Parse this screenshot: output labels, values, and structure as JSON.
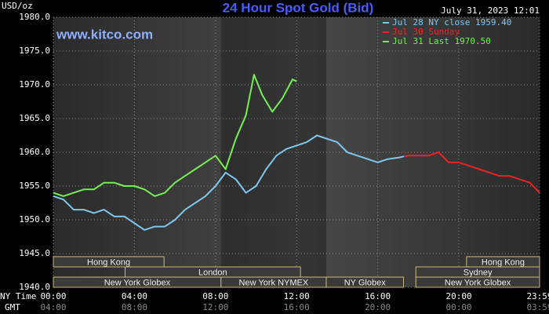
{
  "chart_data": {
    "type": "line",
    "title": "24 Hour Spot Gold (Bid)",
    "subtitle": "www.kitco.com",
    "timestamp": "July 31, 2023 12:01",
    "y_label": "USD/oz",
    "x_label": "NY Time",
    "x2_label": "GMT",
    "ylim": [
      1940,
      1980
    ],
    "yticks": [
      {
        "value": 1940,
        "label": "1940.0"
      },
      {
        "value": 1945,
        "label": "1945.0"
      },
      {
        "value": 1950,
        "label": "1950.0"
      },
      {
        "value": 1955,
        "label": "1955.0"
      },
      {
        "value": 1960,
        "label": "1960.0"
      },
      {
        "value": 1965,
        "label": "1965.0"
      },
      {
        "value": 1970,
        "label": "1970.0"
      },
      {
        "value": 1975,
        "label": "1975.0"
      },
      {
        "value": 1980,
        "label": "1980.0"
      }
    ],
    "xlim": [
      0,
      23.983
    ],
    "xticks": [
      {
        "value": 0,
        "label": "00:00"
      },
      {
        "value": 4,
        "label": "04:00"
      },
      {
        "value": 8,
        "label": "08:00"
      },
      {
        "value": 12,
        "label": "12:00"
      },
      {
        "value": 16,
        "label": "16:00"
      },
      {
        "value": 20,
        "label": "20:00"
      },
      {
        "value": 23.983,
        "label": "23:59"
      }
    ],
    "x2ticks": [
      {
        "value": 0,
        "label": "04:00"
      },
      {
        "value": 4,
        "label": "08:00"
      },
      {
        "value": 8,
        "label": "12:00"
      },
      {
        "value": 12,
        "label": "16:00"
      },
      {
        "value": 16,
        "label": "20:00"
      },
      {
        "value": 20,
        "label": "00:00"
      },
      {
        "value": 23.983,
        "label": "03:59"
      }
    ],
    "grid": true,
    "highlight": [
      8.27,
      13.46
    ],
    "series": [
      {
        "name": "Jul 28 NY close 1959.40",
        "color": "#7ec8ee",
        "x": [
          0,
          0.5,
          1,
          1.5,
          2,
          2.5,
          3,
          3.5,
          4,
          4.5,
          5,
          5.5,
          6,
          6.5,
          7,
          7.5,
          8,
          8.5,
          9,
          9.5,
          10,
          10.5,
          11,
          11.5,
          12,
          12.5,
          13,
          13.5,
          14,
          14.5,
          15,
          15.5,
          16,
          16.5,
          17,
          17.3
        ],
        "values": [
          1953.5,
          1953,
          1951.5,
          1951.5,
          1951,
          1951.5,
          1950.5,
          1950.5,
          1949.5,
          1948.5,
          1949,
          1949,
          1950,
          1951.5,
          1952.5,
          1953.5,
          1955,
          1957,
          1956,
          1954,
          1955,
          1957.5,
          1959.5,
          1960.5,
          1961,
          1961.5,
          1962.5,
          1962,
          1961.5,
          1960,
          1959.5,
          1959,
          1958.5,
          1959,
          1959.2,
          1959.4
        ]
      },
      {
        "name": "Jul 30 Sunday",
        "color": "#ee2222",
        "x": [
          17.3,
          17.5,
          18,
          18.5,
          19,
          19.5,
          20,
          20.5,
          21,
          21.5,
          22,
          22.5,
          23,
          23.5,
          23.983
        ],
        "values": [
          1959.4,
          1959.5,
          1959.5,
          1959.5,
          1960,
          1958.5,
          1958.5,
          1958,
          1957.5,
          1957,
          1956.5,
          1956.5,
          1956,
          1955.5,
          1954
        ]
      },
      {
        "name": "Jul 31 Last 1970.50",
        "color": "#77ee55",
        "x": [
          0,
          0.5,
          1,
          1.5,
          2,
          2.5,
          3,
          3.5,
          4,
          4.5,
          5,
          5.5,
          6,
          6.5,
          7,
          7.5,
          8,
          8.5,
          9,
          9.5,
          9.9,
          10.3,
          10.8,
          11.3,
          11.8,
          12
        ],
        "values": [
          1954,
          1953.5,
          1954,
          1954.5,
          1954.5,
          1955.5,
          1955.5,
          1955,
          1955,
          1954.5,
          1953.5,
          1954,
          1955.5,
          1956.5,
          1957.5,
          1958.5,
          1959.5,
          1957.5,
          1962,
          1965.5,
          1971.5,
          1968.5,
          1966,
          1968,
          1970.8,
          1970.5
        ]
      }
    ],
    "session_rows": [
      [
        {
          "label": "Hong Kong",
          "start": 0,
          "end": 5.46
        },
        {
          "label": "Hong Kong",
          "start": 20.38,
          "end": 23.983
        }
      ],
      [
        {
          "label": "London",
          "start": 3.54,
          "end": 12.19
        },
        {
          "label": "Sydney",
          "start": 17.88,
          "end": 23.983
        }
      ],
      [
        {
          "label": "New York Globex",
          "start": 0,
          "end": 8.27
        },
        {
          "label": "New York NYMEX",
          "start": 8.27,
          "end": 13.46
        },
        {
          "label": "NY Globex",
          "start": 13.46,
          "end": 17.27
        },
        {
          "label": "New York Globex",
          "start": 17.88,
          "end": 23.983
        }
      ]
    ]
  }
}
